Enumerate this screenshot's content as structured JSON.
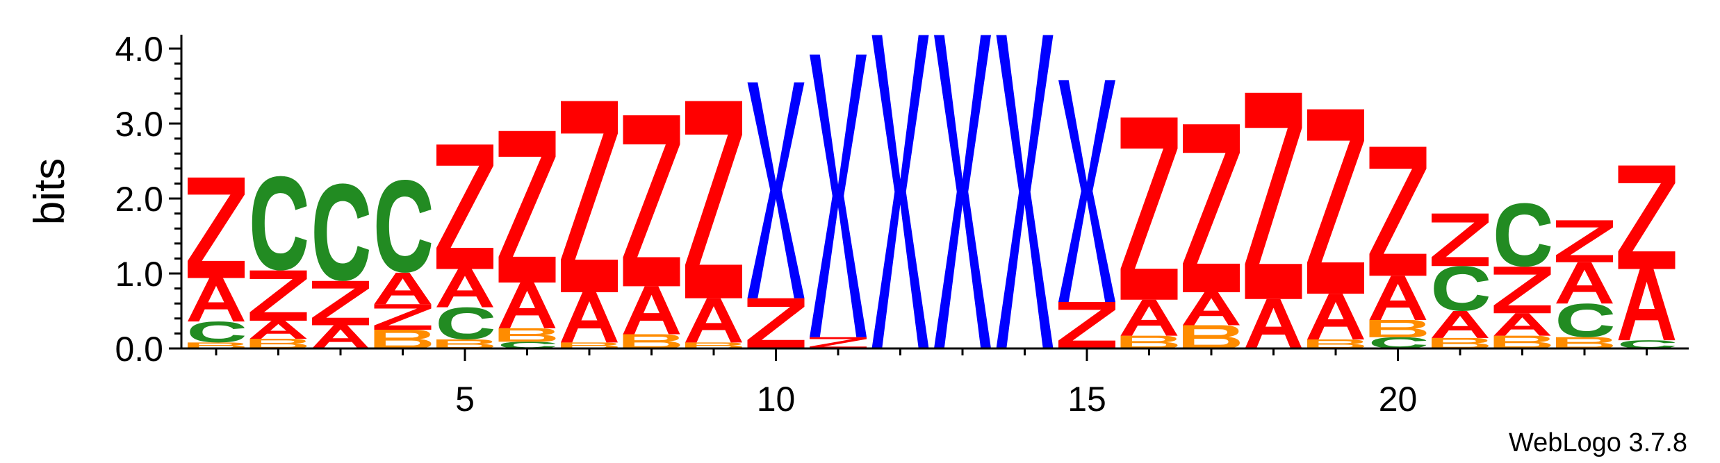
{
  "chart_data": {
    "type": "sequence-logo",
    "ylabel": "bits",
    "ylim": [
      0,
      4.0
    ],
    "y_ticks": [
      "0.0",
      "1.0",
      "2.0",
      "3.0",
      "4.0"
    ],
    "x_ticks": [
      "5",
      "10",
      "15",
      "20"
    ],
    "x_tick_positions": [
      5,
      10,
      15,
      20
    ],
    "positions": 24,
    "credit": "WebLogo 3.7.8",
    "colors": {
      "Z": "#ff0000",
      "A": "#ff0000",
      "X": "#0000ff",
      "C": "#228b22",
      "B": "#ff8c00"
    },
    "stacks": [
      [
        {
          "letter": "B",
          "bits": 0.08
        },
        {
          "letter": "C",
          "bits": 0.28
        },
        {
          "letter": "A",
          "bits": 0.58
        },
        {
          "letter": "Z",
          "bits": 1.34
        }
      ],
      [
        {
          "letter": "B",
          "bits": 0.13
        },
        {
          "letter": "A",
          "bits": 0.24
        },
        {
          "letter": "Z",
          "bits": 0.67
        },
        {
          "letter": "C",
          "bits": 1.26
        }
      ],
      [
        {
          "letter": "A",
          "bits": 0.31
        },
        {
          "letter": "Z",
          "bits": 0.59
        },
        {
          "letter": "C",
          "bits": 1.3
        }
      ],
      [
        {
          "letter": "B",
          "bits": 0.25
        },
        {
          "letter": "Z",
          "bits": 0.34
        },
        {
          "letter": "A",
          "bits": 0.42
        },
        {
          "letter": "C",
          "bits": 1.24
        }
      ],
      [
        {
          "letter": "B",
          "bits": 0.12
        },
        {
          "letter": "C",
          "bits": 0.43
        },
        {
          "letter": "A",
          "bits": 0.51
        },
        {
          "letter": "Z",
          "bits": 1.66
        }
      ],
      [
        {
          "letter": "C",
          "bits": 0.09
        },
        {
          "letter": "B",
          "bits": 0.18
        },
        {
          "letter": "A",
          "bits": 0.61
        },
        {
          "letter": "Z",
          "bits": 2.02
        }
      ],
      [
        {
          "letter": "B",
          "bits": 0.08
        },
        {
          "letter": "A",
          "bits": 0.67
        },
        {
          "letter": "Z",
          "bits": 2.55
        }
      ],
      [
        {
          "letter": "B",
          "bits": 0.19
        },
        {
          "letter": "A",
          "bits": 0.64
        },
        {
          "letter": "Z",
          "bits": 2.28
        }
      ],
      [
        {
          "letter": "B",
          "bits": 0.08
        },
        {
          "letter": "A",
          "bits": 0.59
        },
        {
          "letter": "Z",
          "bits": 2.63
        }
      ],
      [
        {
          "letter": "Z",
          "bits": 0.67
        },
        {
          "letter": "X",
          "bits": 2.88
        }
      ],
      [
        {
          "letter": "Z",
          "bits": 0.15
        },
        {
          "letter": "X",
          "bits": 3.77
        }
      ],
      [
        {
          "letter": "X",
          "bits": 4.18
        }
      ],
      [
        {
          "letter": "X",
          "bits": 4.18
        }
      ],
      [
        {
          "letter": "X",
          "bits": 4.18
        }
      ],
      [
        {
          "letter": "Z",
          "bits": 0.62
        },
        {
          "letter": "X",
          "bits": 2.96
        }
      ],
      [
        {
          "letter": "B",
          "bits": 0.17
        },
        {
          "letter": "A",
          "bits": 0.48
        },
        {
          "letter": "Z",
          "bits": 2.43
        }
      ],
      [
        {
          "letter": "B",
          "bits": 0.31
        },
        {
          "letter": "A",
          "bits": 0.44
        },
        {
          "letter": "Z",
          "bits": 2.24
        }
      ],
      [
        {
          "letter": "A",
          "bits": 0.66
        },
        {
          "letter": "Z",
          "bits": 2.75
        }
      ],
      [
        {
          "letter": "B",
          "bits": 0.12
        },
        {
          "letter": "A",
          "bits": 0.61
        },
        {
          "letter": "Z",
          "bits": 2.46
        }
      ],
      [
        {
          "letter": "C",
          "bits": 0.15
        },
        {
          "letter": "B",
          "bits": 0.23
        },
        {
          "letter": "A",
          "bits": 0.59
        },
        {
          "letter": "Z",
          "bits": 1.72
        }
      ],
      [
        {
          "letter": "B",
          "bits": 0.14
        },
        {
          "letter": "A",
          "bits": 0.36
        },
        {
          "letter": "C",
          "bits": 0.6
        },
        {
          "letter": "Z",
          "bits": 0.7
        }
      ],
      [
        {
          "letter": "B",
          "bits": 0.17
        },
        {
          "letter": "A",
          "bits": 0.3
        },
        {
          "letter": "Z",
          "bits": 0.62
        },
        {
          "letter": "C",
          "bits": 0.85
        }
      ],
      [
        {
          "letter": "B",
          "bits": 0.15
        },
        {
          "letter": "C",
          "bits": 0.45
        },
        {
          "letter": "A",
          "bits": 0.55
        },
        {
          "letter": "Z",
          "bits": 0.56
        }
      ],
      [
        {
          "letter": "C",
          "bits": 0.11
        },
        {
          "letter": "A",
          "bits": 0.95
        },
        {
          "letter": "Z",
          "bits": 1.38
        }
      ]
    ]
  }
}
